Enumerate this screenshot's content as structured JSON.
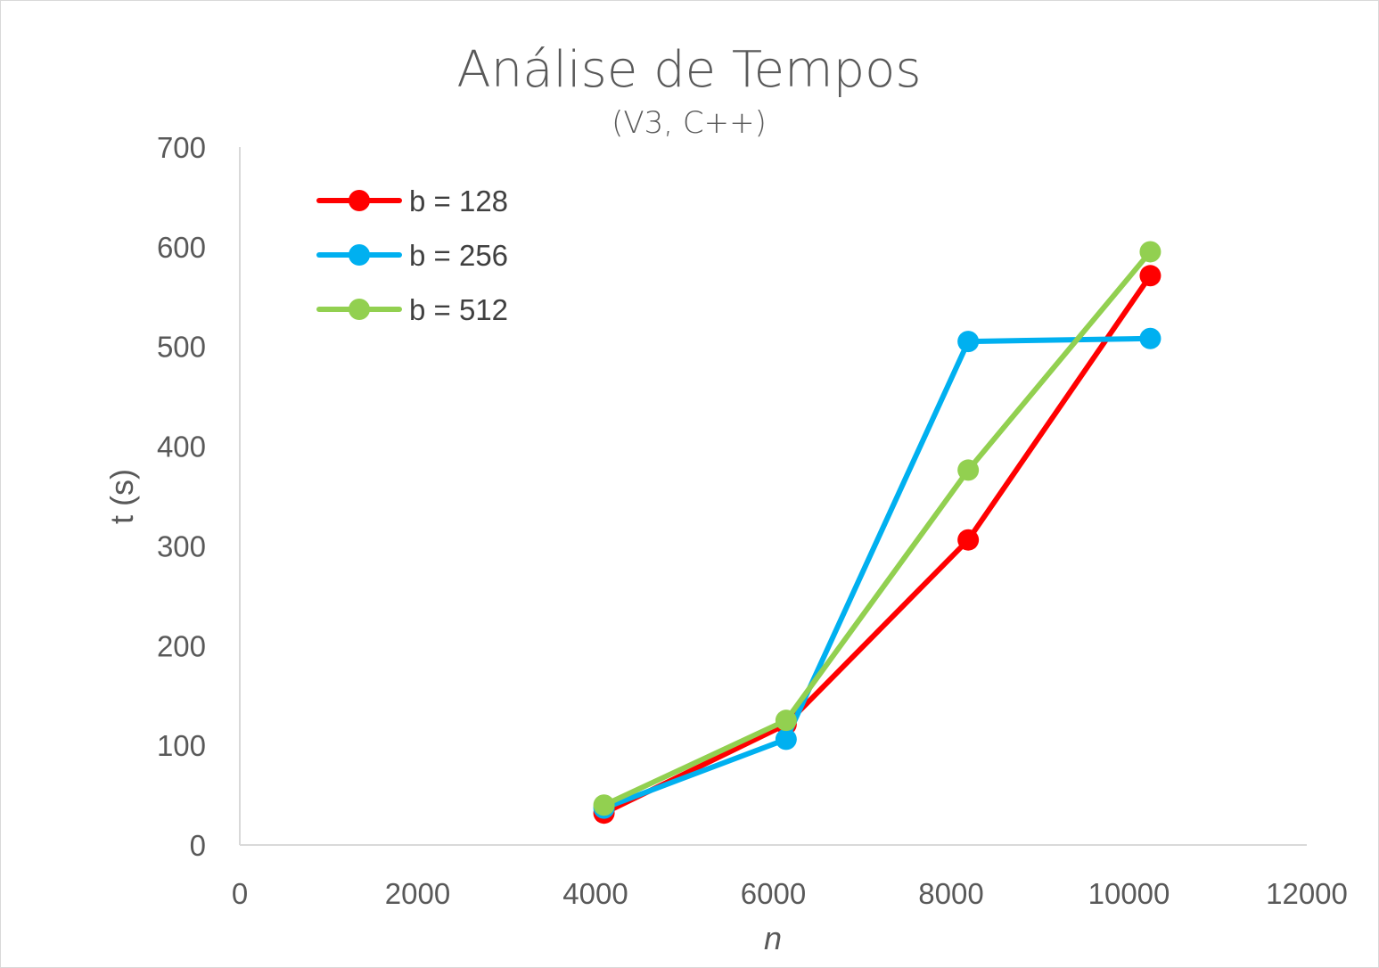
{
  "chart_data": {
    "type": "line",
    "title": "Análise de Tempos",
    "subtitle": "(V3, C++)",
    "xlabel": "n",
    "ylabel": "t (s)",
    "xlim": [
      0,
      12000
    ],
    "ylim": [
      0,
      700
    ],
    "x_ticks": [
      "0",
      "2000",
      "4000",
      "6000",
      "8000",
      "10000",
      "12000"
    ],
    "y_ticks": [
      "0",
      "100",
      "200",
      "300",
      "400",
      "500",
      "600",
      "700"
    ],
    "grid": false,
    "legend_position": "top-left",
    "series": [
      {
        "name": "b = 128",
        "color": "#ff0000",
        "x": [
          4096,
          6144,
          8192,
          10240
        ],
        "y": [
          32,
          121,
          306,
          571
        ]
      },
      {
        "name": "b = 256",
        "color": "#00b0f0",
        "x": [
          4096,
          6144,
          8192,
          10240
        ],
        "y": [
          37,
          106,
          505,
          508
        ]
      },
      {
        "name": "b = 512",
        "color": "#92d050",
        "x": [
          4096,
          6144,
          8192,
          10240
        ],
        "y": [
          40,
          125,
          376,
          595
        ]
      }
    ]
  }
}
